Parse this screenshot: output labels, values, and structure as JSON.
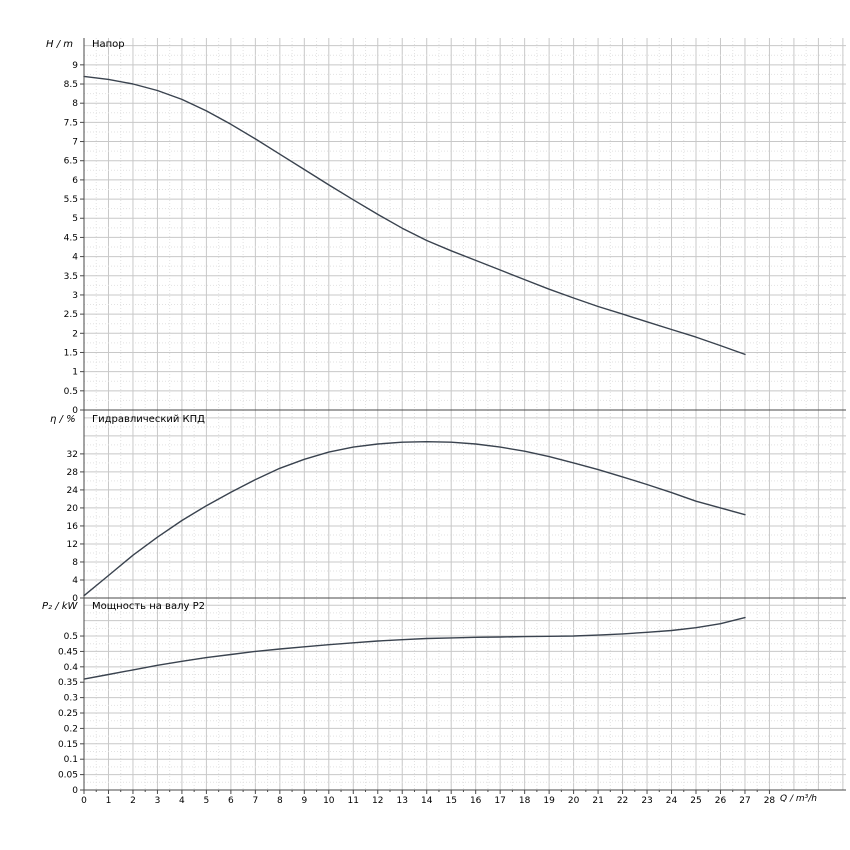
{
  "window": {
    "background": "#ffffff"
  },
  "x_axis": {
    "label": "Q / m³/h",
    "min": 0,
    "max": 28,
    "tick_step": 1
  },
  "style": {
    "curve_color": "#3a434f",
    "grid_major": "#c8c8c8",
    "grid_minor": "#e2e2e2",
    "axis_color": "#4a4a4a",
    "text_color": "#000000"
  },
  "chart_data": [
    {
      "type": "line",
      "title": "Напор",
      "ylabel": "H / m",
      "xlabel": "Q / m³/h",
      "ylim": [
        0,
        9.7
      ],
      "ytick_step": 0.5,
      "ytick_max": 9,
      "legend": "none",
      "grid": true,
      "x": [
        0,
        1,
        2,
        3,
        4,
        5,
        6,
        7,
        8,
        9,
        10,
        11,
        12,
        13,
        14,
        15,
        16,
        17,
        18,
        19,
        20,
        21,
        22,
        23,
        24,
        25,
        26,
        27
      ],
      "values": [
        8.7,
        8.62,
        8.5,
        8.33,
        8.1,
        7.8,
        7.45,
        7.07,
        6.67,
        6.27,
        5.87,
        5.48,
        5.1,
        4.74,
        4.42,
        4.15,
        3.9,
        3.65,
        3.4,
        3.15,
        2.92,
        2.7,
        2.5,
        2.3,
        2.1,
        1.9,
        1.68,
        1.45
      ]
    },
    {
      "type": "line",
      "title": "Гидравлический КПД",
      "ylabel": "η / %",
      "xlabel": "Q / m³/h",
      "ylim": [
        0,
        41.3
      ],
      "ytick_step": 4,
      "ytick_max": 32,
      "legend": "none",
      "grid": true,
      "x": [
        0,
        1,
        2,
        3,
        4,
        5,
        6,
        7,
        8,
        9,
        10,
        11,
        12,
        13,
        14,
        15,
        16,
        17,
        18,
        19,
        20,
        21,
        22,
        23,
        24,
        25,
        26,
        27
      ],
      "values": [
        0.5,
        5,
        9.5,
        13.5,
        17.2,
        20.5,
        23.5,
        26.3,
        28.8,
        30.8,
        32.4,
        33.5,
        34.2,
        34.6,
        34.7,
        34.6,
        34.2,
        33.5,
        32.6,
        31.4,
        30,
        28.5,
        26.9,
        25.2,
        23.4,
        21.5,
        20,
        18.5
      ]
    },
    {
      "type": "line",
      "title": "Мощность на валу P2",
      "ylabel": "P₂ / kW",
      "xlabel": "Q / m³/h",
      "ylim": [
        0,
        0.617
      ],
      "ytick_step": 0.05,
      "ytick_max": 0.5,
      "legend": "none",
      "grid": true,
      "x": [
        0,
        1,
        2,
        3,
        4,
        5,
        6,
        7,
        8,
        9,
        10,
        11,
        12,
        13,
        14,
        15,
        16,
        17,
        18,
        19,
        20,
        21,
        22,
        23,
        24,
        25,
        26,
        27
      ],
      "values": [
        0.36,
        0.375,
        0.39,
        0.405,
        0.418,
        0.43,
        0.44,
        0.45,
        0.458,
        0.465,
        0.472,
        0.478,
        0.484,
        0.488,
        0.492,
        0.494,
        0.496,
        0.497,
        0.498,
        0.499,
        0.5,
        0.503,
        0.507,
        0.512,
        0.518,
        0.527,
        0.54,
        0.56
      ]
    }
  ]
}
